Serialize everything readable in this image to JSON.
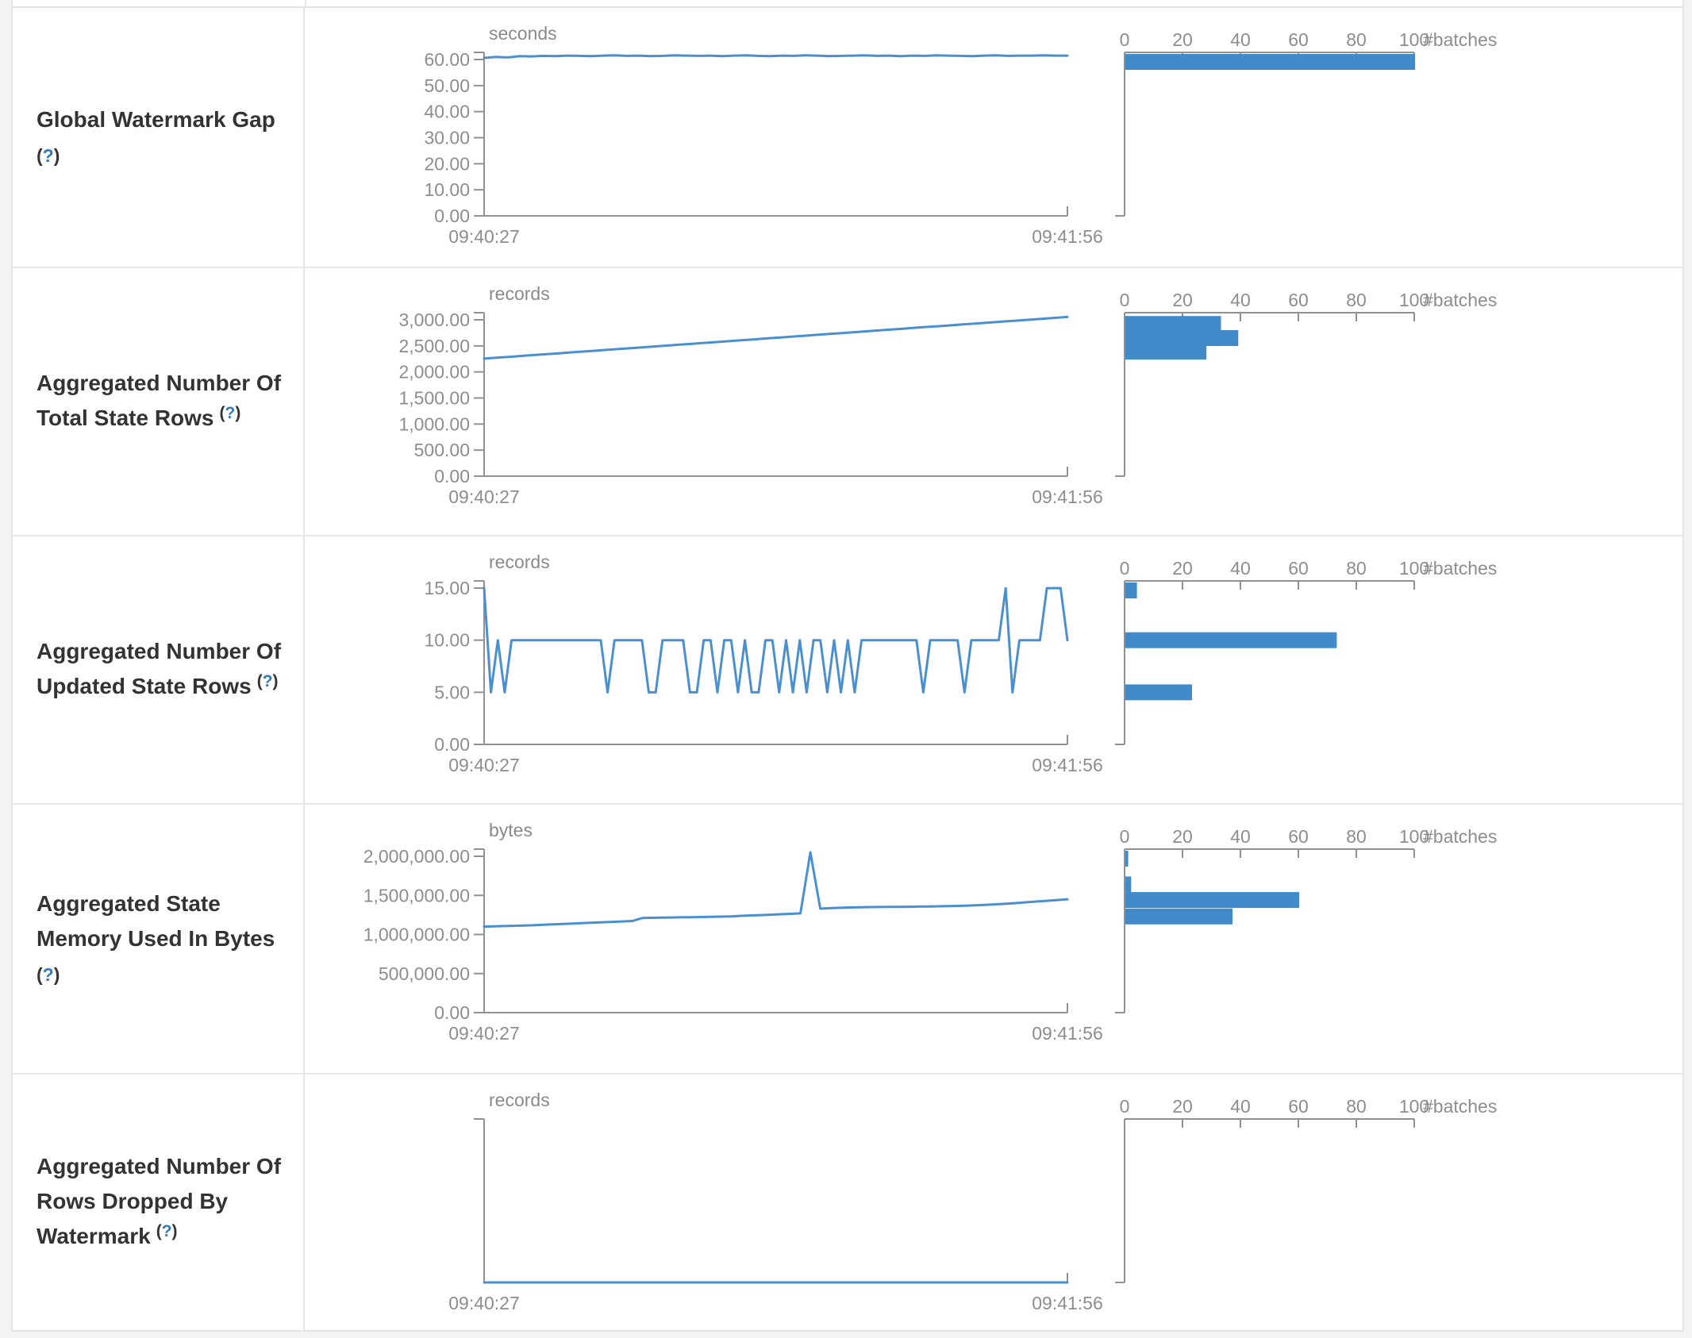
{
  "colors": {
    "bar_blue": "#428bca",
    "line_blue": "#4a90d0",
    "axis_gray": "#919191",
    "text_gray": "#8d8d8d",
    "help_blue": "#337ab7"
  },
  "rows": [
    {
      "label_lines": [
        "Global Watermark Gap",
        "(?)"
      ]
    },
    {
      "label_lines": [
        "Aggregated Number Of",
        "Total State Rows (?)"
      ]
    },
    {
      "label_lines": [
        "Aggregated Number Of",
        "Updated State Rows (?)"
      ]
    },
    {
      "label_lines": [
        "Aggregated State",
        "Memory Used In Bytes",
        "(?)"
      ]
    },
    {
      "label_lines": [
        "Aggregated Number Of",
        "Rows Dropped By",
        "Watermark (?)"
      ]
    }
  ],
  "chart_data": [
    {
      "type": "line",
      "unit": "seconds",
      "x_start": "09:40:27",
      "x_end": "09:41:56",
      "y_ticks": [
        "60.00",
        "50.00",
        "40.00",
        "30.00",
        "20.00",
        "10.00",
        "0.00"
      ],
      "y_tick_values": [
        60,
        50,
        40,
        30,
        20,
        10,
        0
      ],
      "domain_max": 62.74,
      "series": [
        60.6,
        61.0,
        60.8,
        61.3,
        61.2,
        61.4,
        61.3,
        61.5,
        61.4,
        61.3,
        61.5,
        61.6,
        61.4,
        61.5,
        61.3,
        61.4,
        61.6,
        61.5,
        61.4,
        61.5,
        61.3,
        61.5,
        61.6,
        61.4,
        61.3,
        61.5,
        61.4,
        61.6,
        61.5,
        61.3,
        61.4,
        61.5,
        61.6,
        61.4,
        61.5,
        61.3,
        61.5,
        61.4,
        61.6,
        61.5,
        61.4,
        61.3,
        61.5,
        61.6,
        61.4,
        61.5,
        61.5,
        61.6,
        61.5,
        61.5
      ],
      "histogram": {
        "axis_label": "#batches",
        "ticks": [
          "0",
          "20",
          "40",
          "60",
          "80",
          "100"
        ],
        "tick_values": [
          0,
          20,
          40,
          60,
          80,
          100
        ],
        "bins": [
          {
            "value": 61.5,
            "batches": 100
          }
        ]
      }
    },
    {
      "type": "line",
      "unit": "records",
      "x_start": "09:40:27",
      "x_end": "09:41:56",
      "y_ticks": [
        "3,000.00",
        "2,500.00",
        "2,000.00",
        "1,500.00",
        "1,000.00",
        "500.00",
        "0.00"
      ],
      "y_tick_values": [
        3000,
        2500,
        2000,
        1500,
        1000,
        500,
        0
      ],
      "domain_max": 3137,
      "series": [
        2255,
        2276,
        2296,
        2317,
        2337,
        2358,
        2378,
        2399,
        2419,
        2440,
        2460,
        2481,
        2501,
        2522,
        2542,
        2563,
        2583,
        2604,
        2624,
        2645,
        2665,
        2686,
        2706,
        2727,
        2747,
        2768,
        2788,
        2809,
        2829,
        2850,
        2870,
        2891,
        2911,
        2932,
        2952,
        2973,
        2993,
        3014,
        3034,
        3055
      ],
      "histogram": {
        "axis_label": "#batches",
        "ticks": [
          "0",
          "20",
          "40",
          "60",
          "80",
          "100"
        ],
        "tick_values": [
          0,
          20,
          40,
          60,
          80,
          100
        ],
        "bins": [
          {
            "value": 2920,
            "batches": 33
          },
          {
            "value": 2650,
            "batches": 39
          },
          {
            "value": 2390,
            "batches": 28
          }
        ]
      }
    },
    {
      "type": "line",
      "unit": "records",
      "x_start": "09:40:27",
      "x_end": "09:41:56",
      "y_ticks": [
        "15.00",
        "10.00",
        "5.00",
        "0.00"
      ],
      "y_tick_values": [
        15,
        10,
        5,
        0
      ],
      "domain_max": 15.69,
      "series": [
        15,
        5,
        10,
        5,
        10,
        10,
        10,
        10,
        10,
        10,
        10,
        10,
        10,
        10,
        10,
        10,
        10,
        10,
        5,
        10,
        10,
        10,
        10,
        10,
        5,
        5,
        10,
        10,
        10,
        10,
        5,
        5,
        10,
        10,
        5,
        10,
        10,
        5,
        10,
        5,
        5,
        10,
        10,
        5,
        10,
        5,
        10,
        5,
        10,
        10,
        5,
        10,
        5,
        10,
        5,
        10,
        10,
        10,
        10,
        10,
        10,
        10,
        10,
        10,
        5,
        10,
        10,
        10,
        10,
        10,
        5,
        10,
        10,
        10,
        10,
        10,
        15,
        5,
        10,
        10,
        10,
        10,
        15,
        15,
        15,
        10
      ],
      "histogram": {
        "axis_label": "#batches",
        "ticks": [
          "0",
          "20",
          "40",
          "60",
          "80",
          "100"
        ],
        "tick_values": [
          0,
          20,
          40,
          60,
          80,
          100
        ],
        "bins": [
          {
            "value": 15,
            "batches": 4
          },
          {
            "value": 10,
            "batches": 73
          },
          {
            "value": 5,
            "batches": 23
          }
        ]
      }
    },
    {
      "type": "line",
      "unit": "bytes",
      "x_start": "09:40:27",
      "x_end": "09:41:56",
      "y_ticks": [
        "2,000,000.00",
        "1,500,000.00",
        "1,000,000.00",
        "500,000.00",
        "0.00"
      ],
      "y_tick_values": [
        2000000,
        1500000,
        1000000,
        500000,
        0
      ],
      "domain_max": 2091000,
      "series": [
        1100000,
        1103000,
        1107000,
        1110000,
        1114000,
        1118000,
        1125000,
        1130000,
        1134000,
        1139000,
        1146000,
        1151000,
        1156000,
        1161000,
        1166000,
        1172000,
        1210000,
        1213000,
        1215000,
        1217000,
        1219000,
        1221000,
        1223000,
        1225000,
        1228000,
        1231000,
        1238000,
        1243000,
        1248000,
        1253000,
        1259000,
        1264000,
        1270000,
        2050000,
        1330000,
        1336000,
        1341000,
        1345000,
        1348000,
        1350000,
        1351000,
        1352000,
        1353000,
        1354000,
        1356000,
        1358000,
        1360000,
        1362000,
        1365000,
        1369000,
        1374000,
        1380000,
        1387000,
        1395000,
        1404000,
        1413000,
        1422000,
        1431000,
        1440000,
        1450000
      ],
      "histogram": {
        "axis_label": "#batches",
        "ticks": [
          "0",
          "20",
          "40",
          "60",
          "80",
          "100"
        ],
        "tick_values": [
          0,
          20,
          40,
          60,
          80,
          100
        ],
        "bins": [
          {
            "value": 2050000,
            "batches": 1
          },
          {
            "value": 1640000,
            "batches": 2
          },
          {
            "value": 1440000,
            "batches": 60
          },
          {
            "value": 1230000,
            "batches": 37
          }
        ]
      }
    },
    {
      "type": "line",
      "unit": "records",
      "x_start": "09:40:27",
      "x_end": "09:41:56",
      "y_ticks": [],
      "y_tick_values": [],
      "domain_max": 1,
      "series": [
        0,
        0
      ],
      "histogram": {
        "axis_label": "#batches",
        "ticks": [
          "0",
          "20",
          "40",
          "60",
          "80",
          "100"
        ],
        "tick_values": [
          0,
          20,
          40,
          60,
          80,
          100
        ],
        "bins": []
      }
    }
  ]
}
